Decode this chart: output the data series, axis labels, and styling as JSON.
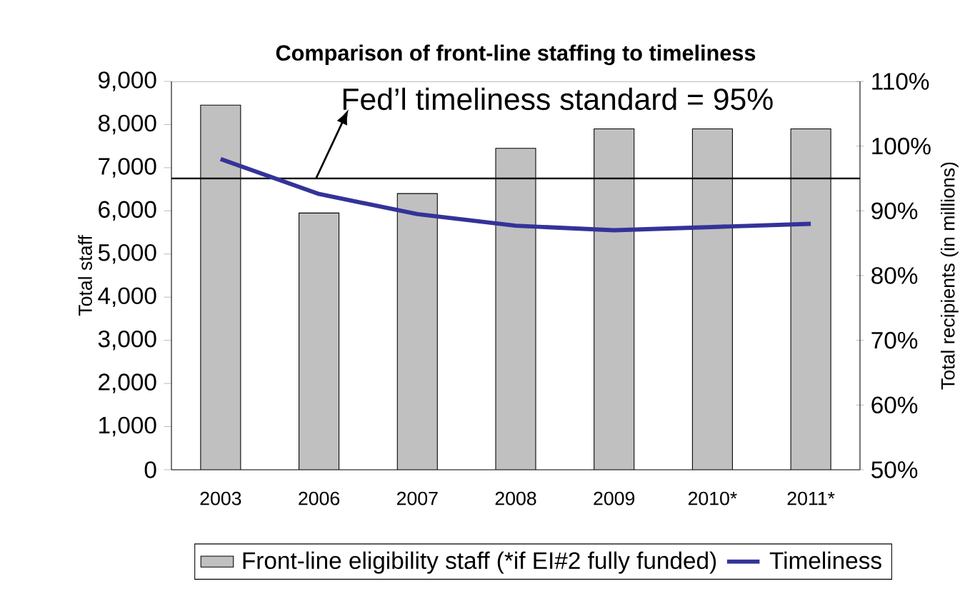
{
  "chart_data": {
    "type": "bar",
    "title": "Comparison of front-line staffing to timeliness",
    "ylabel": "Total staff",
    "y2label": "Total recipients (in millions)",
    "categories": [
      "2003",
      "2006",
      "2007",
      "2008",
      "2009",
      "2010*",
      "2011*"
    ],
    "series": [
      {
        "name": "Front-line eligibility staff (*if EI#2 fully funded)",
        "color": "#c0c0c0",
        "values": [
          8450,
          5950,
          6400,
          7450,
          7900,
          7900,
          7900
        ]
      },
      {
        "name": "Timeliness",
        "type": "line",
        "axis": "y2",
        "color": "#333399",
        "values": [
          98,
          92.6,
          89.5,
          87.7,
          87,
          87.5,
          88
        ]
      }
    ],
    "ylim": [
      0,
      9000
    ],
    "yticks": [
      0,
      {
        "value": 1000,
        "label": "1,000"
      },
      {
        "value": 2000,
        "label": "2,000"
      },
      {
        "value": 3000,
        "label": "3,000"
      },
      {
        "value": 4000,
        "label": "4,000"
      },
      {
        "value": 5000,
        "label": "5,000"
      },
      {
        "value": 6000,
        "label": "6,000"
      },
      {
        "value": 7000,
        "label": "7,000"
      },
      {
        "value": 8000,
        "label": "8,000"
      },
      {
        "value": 9000,
        "label": "9,000"
      }
    ],
    "y2lim": [
      50,
      110
    ],
    "y2ticks": [
      {
        "value": 50,
        "label": "50%"
      },
      {
        "value": 60,
        "label": "60%"
      },
      {
        "value": 70,
        "label": "70%"
      },
      {
        "value": 80,
        "label": "80%"
      },
      {
        "value": 90,
        "label": "90%"
      },
      {
        "value": 100,
        "label": "100%"
      },
      {
        "value": 110,
        "label": "110%"
      }
    ],
    "ref_lines": [
      {
        "axis": "y2",
        "value": 95,
        "label": "Fed’l timeliness standard = 95%",
        "color": "#000000"
      }
    ],
    "legend": "bottom",
    "grid": false,
    "marker": "none",
    "line_style": "solid"
  }
}
